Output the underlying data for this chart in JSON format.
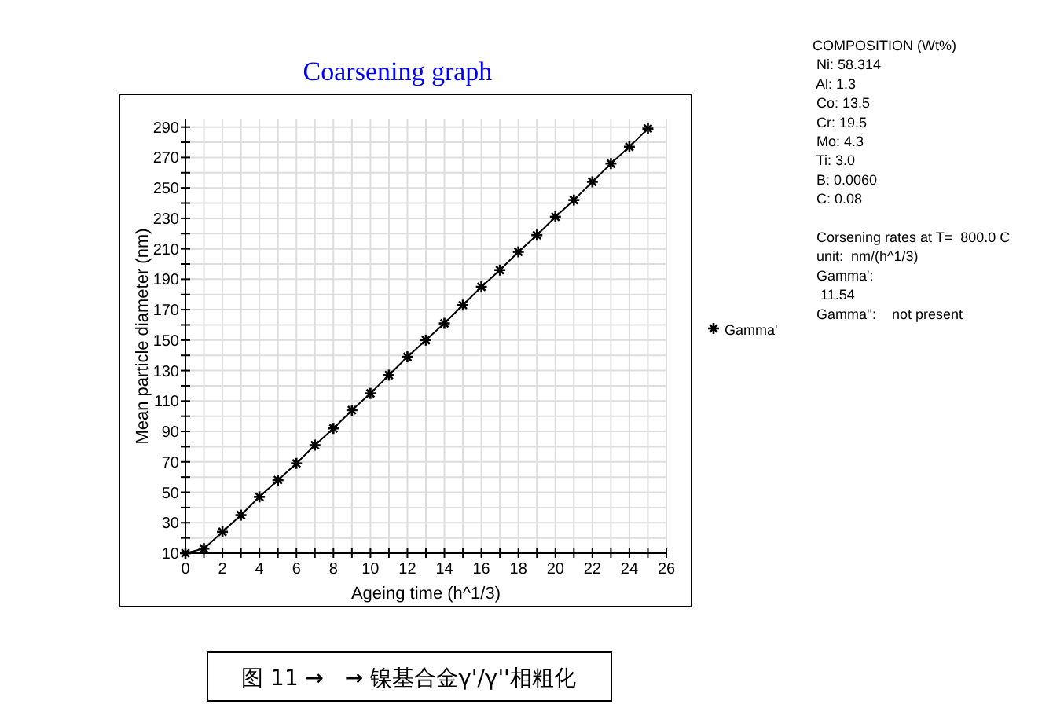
{
  "chart_data": {
    "type": "line",
    "title": "Coarsening graph",
    "xlabel": "Ageing time (h^1/3)",
    "ylabel": "Mean particle diameter (nm)",
    "x": [
      0,
      1,
      2,
      3,
      4,
      5,
      6,
      7,
      8,
      9,
      10,
      11,
      12,
      13,
      14,
      15,
      16,
      17,
      18,
      19,
      20,
      21,
      22,
      23,
      24,
      25
    ],
    "series": [
      {
        "name": "Gamma'",
        "color": "#000000",
        "values": [
          10,
          13,
          24,
          35,
          47,
          58,
          69,
          81,
          92,
          104,
          115,
          127,
          139,
          150,
          161,
          173,
          185,
          196,
          208,
          219,
          231,
          242,
          254,
          266,
          277,
          289
        ]
      }
    ],
    "xlim": [
      0,
      26
    ],
    "ylim": [
      10,
      295
    ],
    "xticks": [
      0,
      {
        "value": 1,
        "label": null
      },
      2,
      {
        "value": 3,
        "label": null
      },
      4,
      {
        "value": 5,
        "label": null
      },
      6,
      {
        "value": 7,
        "label": null
      },
      8,
      {
        "value": 9,
        "label": null
      },
      10,
      {
        "value": 11,
        "label": null
      },
      12,
      {
        "value": 13,
        "label": null
      },
      14,
      {
        "value": 15,
        "label": null
      },
      16,
      {
        "value": 17,
        "label": null
      },
      18,
      {
        "value": 19,
        "label": null
      },
      20,
      {
        "value": 21,
        "label": null
      },
      22,
      {
        "value": 23,
        "label": null
      },
      24,
      {
        "value": 25,
        "label": null
      },
      26
    ],
    "yticks": [
      10,
      {
        "value": 20,
        "label": null
      },
      30,
      {
        "value": 40,
        "label": null
      },
      50,
      {
        "value": 60,
        "label": null
      },
      70,
      {
        "value": 80,
        "label": null
      },
      90,
      {
        "value": 100,
        "label": null
      },
      110,
      {
        "value": 120,
        "label": null
      },
      130,
      {
        "value": 140,
        "label": null
      },
      150,
      {
        "value": 160,
        "label": null
      },
      170,
      {
        "value": 180,
        "label": null
      },
      190,
      {
        "value": 200,
        "label": null
      },
      210,
      {
        "value": 220,
        "label": null
      },
      230,
      {
        "value": 240,
        "label": null
      },
      250,
      {
        "value": 260,
        "label": null
      },
      270,
      {
        "value": 280,
        "label": null
      },
      290
    ],
    "grid": true,
    "legend": "right",
    "marker": "cross",
    "line_style": "solid",
    "annotations": [
      "COMPOSITION (Wt%)",
      " Ni: 58.314",
      " Al: 1.3",
      " Co: 13.5",
      " Cr: 19.5",
      " Mo: 4.3",
      " Ti: 3.0",
      " B: 0.0060",
      " C: 0.08",
      " Corsening rates at T=  800.0 C",
      " unit:  nm/(h^1/3)",
      " Gamma':",
      "  11.54",
      " Gamma'':    not present",
      "图 11 →   → 镍基合金γ'/γ''相粗化"
    ]
  }
}
